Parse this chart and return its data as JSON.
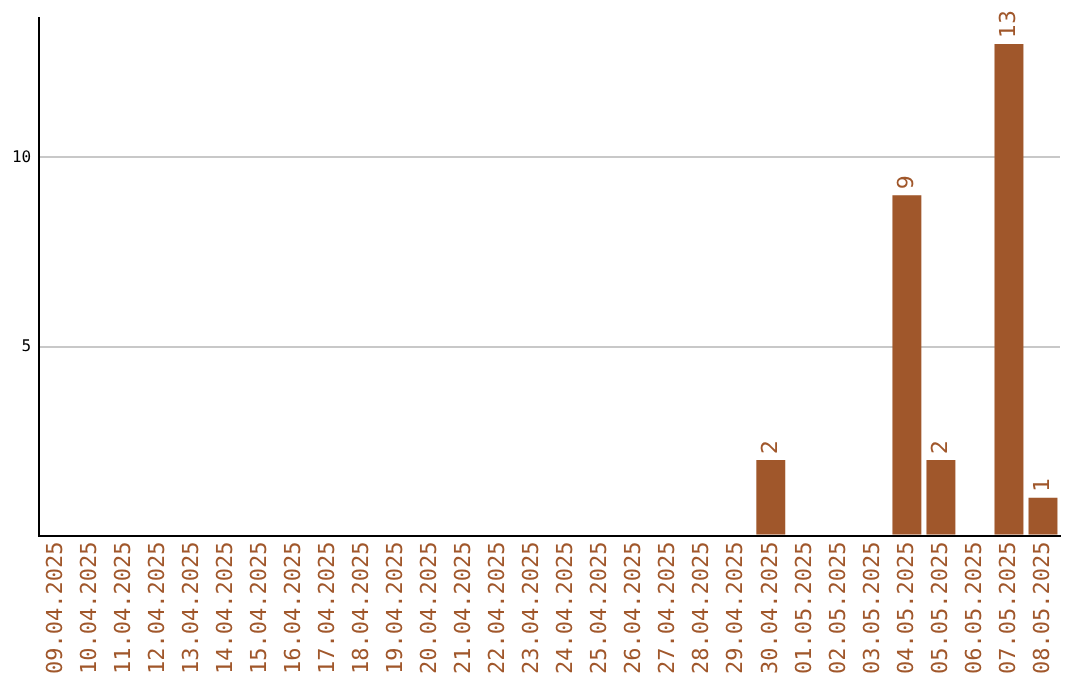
{
  "chart_data": {
    "type": "bar",
    "categories": [
      "09.04.2025",
      "10.04.2025",
      "11.04.2025",
      "12.04.2025",
      "13.04.2025",
      "14.04.2025",
      "15.04.2025",
      "16.04.2025",
      "17.04.2025",
      "18.04.2025",
      "19.04.2025",
      "20.04.2025",
      "21.04.2025",
      "22.04.2025",
      "23.04.2025",
      "24.04.2025",
      "25.04.2025",
      "26.04.2025",
      "27.04.2025",
      "28.04.2025",
      "29.04.2025",
      "30.04.2025",
      "01.05.2025",
      "02.05.2025",
      "03.05.2025",
      "04.05.2025",
      "05.05.2025",
      "06.05.2025",
      "07.05.2025",
      "08.05.2025"
    ],
    "values": [
      0,
      0,
      0,
      0,
      0,
      0,
      0,
      0,
      0,
      0,
      0,
      0,
      0,
      0,
      0,
      0,
      0,
      0,
      0,
      0,
      0,
      2,
      0,
      0,
      0,
      9,
      2,
      0,
      13,
      1
    ],
    "value_labels": [
      null,
      null,
      null,
      null,
      null,
      null,
      null,
      null,
      null,
      null,
      null,
      null,
      null,
      null,
      null,
      null,
      null,
      null,
      null,
      null,
      null,
      "2",
      null,
      null,
      null,
      "9",
      "2",
      null,
      "13",
      "1"
    ],
    "color": "#a0572b",
    "ylim": [
      0,
      13.7
    ],
    "yticks": [
      {
        "value": 0,
        "label": null
      },
      5,
      10
    ],
    "grid": "y",
    "legend": false
  }
}
